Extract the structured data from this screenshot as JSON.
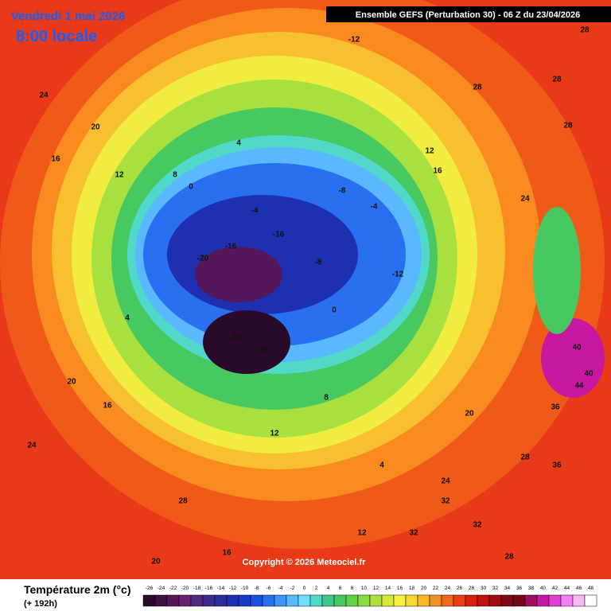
{
  "header": {
    "date": "Vendredi 1 mai 2026",
    "time": "8:00 locale",
    "model": "Ensemble GEFS  (Perturbation 30)  -  06 Z du 23/04/2026"
  },
  "map": {
    "labels": [
      28,
      24,
      28,
      28,
      24,
      20,
      16,
      12,
      -12,
      8,
      4,
      0,
      -4,
      -8,
      -12,
      -16,
      -20,
      -16,
      -8,
      -4,
      4,
      20,
      16,
      12,
      8,
      0,
      24,
      28,
      32,
      32,
      36,
      40,
      44,
      28,
      20,
      16,
      12,
      4,
      20,
      24,
      32,
      28,
      16,
      12,
      28,
      36,
      40,
      -20,
      -32,
      -16
    ],
    "copyright": "Copyright © 2026 Meteociel.fr"
  },
  "legend": {
    "title": "Température 2m (°c)",
    "lead": "(+ 192h)",
    "ticks": [
      -26,
      -24,
      -22,
      -20,
      -18,
      -16,
      -14,
      -12,
      -10,
      -8,
      -6,
      -4,
      -2,
      0,
      2,
      4,
      6,
      8,
      10,
      12,
      14,
      16,
      18,
      20,
      22,
      24,
      26,
      28,
      30,
      32,
      34,
      36,
      38,
      40,
      42,
      44,
      46,
      48
    ],
    "colors": [
      "#2a0a2a",
      "#3d1040",
      "#55185a",
      "#6a2070",
      "#502a80",
      "#3a2c8c",
      "#2a2e9a",
      "#1e30b0",
      "#1a3cc8",
      "#1e50e0",
      "#2870f0",
      "#3c96f8",
      "#5ab8ff",
      "#70e0ff",
      "#50d8c8",
      "#40c890",
      "#48c860",
      "#60d048",
      "#88dc40",
      "#b0e040",
      "#d8e838",
      "#f8f040",
      "#f8d830",
      "#f8b828",
      "#f09020",
      "#f06818",
      "#e84010",
      "#d82010",
      "#c01010",
      "#a00c10",
      "#800810",
      "#700818",
      "#a01060",
      "#c818a0",
      "#e040d0",
      "#f080f0",
      "#f8b8f8",
      "#ffffff"
    ]
  }
}
